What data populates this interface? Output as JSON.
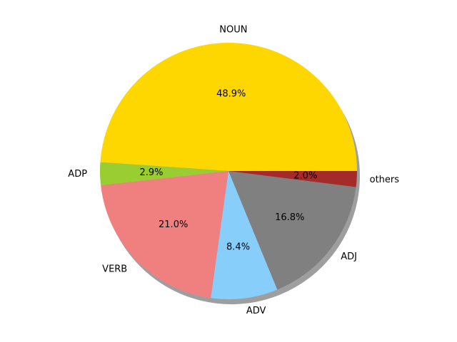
{
  "chart_data": {
    "type": "pie",
    "title": "",
    "shadow": true,
    "start": "east",
    "direction": "counterclockwise",
    "slices": [
      {
        "label": "NOUN",
        "value": 48.9,
        "pct_label": "48.9%",
        "color": "#ffd700"
      },
      {
        "label": "ADP",
        "value": 2.9,
        "pct_label": "2.9%",
        "color": "#9acd32"
      },
      {
        "label": "VERB",
        "value": 21.0,
        "pct_label": "21.0%",
        "color": "#f08080"
      },
      {
        "label": "ADV",
        "value": 8.4,
        "pct_label": "8.4%",
        "color": "#87cefa"
      },
      {
        "label": "ADJ",
        "value": 16.8,
        "pct_label": "16.8%",
        "color": "#808080"
      },
      {
        "label": "others",
        "value": 2.0,
        "pct_label": "2.0%",
        "color": "#a52a2a"
      }
    ]
  }
}
